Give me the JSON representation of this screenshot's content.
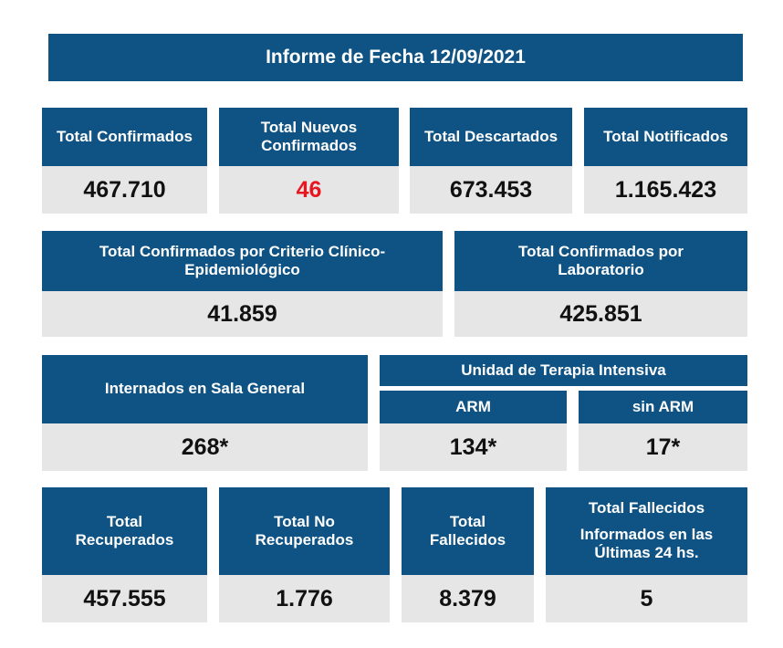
{
  "report_title": "Informe de Fecha 12/09/2021",
  "row1": [
    {
      "label": "Total Confirmados",
      "value": "467.710"
    },
    {
      "label": "Total Nuevos Confirmados",
      "value": "46"
    },
    {
      "label": "Total Descartados",
      "value": "673.453"
    },
    {
      "label": "Total Notificados",
      "value": "1.165.423"
    }
  ],
  "row2": [
    {
      "label": "Total Confirmados por Criterio Clínico-Epidemiológico",
      "value": "41.859"
    },
    {
      "label": "Total Confirmados por Laboratorio",
      "value": "425.851"
    }
  ],
  "row3": {
    "sala_general": {
      "label": "Internados en Sala General",
      "value": "268*"
    },
    "uti": {
      "label": "Unidad de Terapia Intensiva",
      "arm": {
        "label": "ARM",
        "value": "134*"
      },
      "sin_arm": {
        "label": "sin ARM",
        "value": "17*"
      }
    }
  },
  "row4": [
    {
      "label": "Total Recuperados",
      "value": "457.555"
    },
    {
      "label": "Total No Recuperados",
      "value": "1.776"
    },
    {
      "label": "Total Fallecidos",
      "value": "8.379"
    },
    {
      "label_line1": "Total Fallecidos",
      "label_line2": "Informados en las Últimas 24 hs.",
      "value": "5"
    }
  ],
  "colors": {
    "header_bg": "#0f5384",
    "value_bg": "#e6e6e6",
    "highlight": "#e8161e"
  }
}
